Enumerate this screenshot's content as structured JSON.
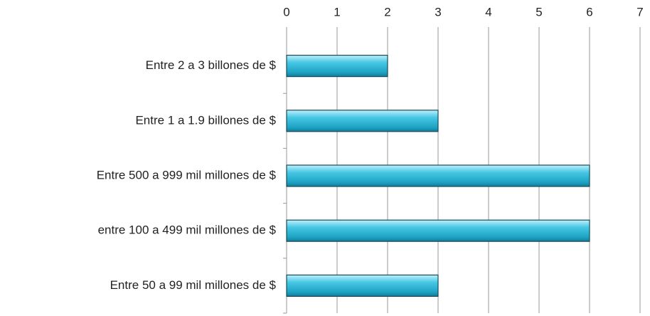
{
  "chart_data": {
    "type": "bar",
    "orientation": "horizontal",
    "categories": [
      "Entre 2 a 3 billones de $",
      "Entre 1 a 1.9 billones de $",
      "Entre 500 a 999 mil millones de $",
      "entre 100 a 499 mil millones de $",
      "Entre 50 a 99 mil millones de $"
    ],
    "values": [
      2,
      3,
      6,
      6,
      3
    ],
    "color": "#3bbfdc",
    "xlim": [
      0,
      7
    ],
    "xticks": [
      0,
      1,
      2,
      3,
      4,
      5,
      6,
      7
    ],
    "grid": true
  }
}
